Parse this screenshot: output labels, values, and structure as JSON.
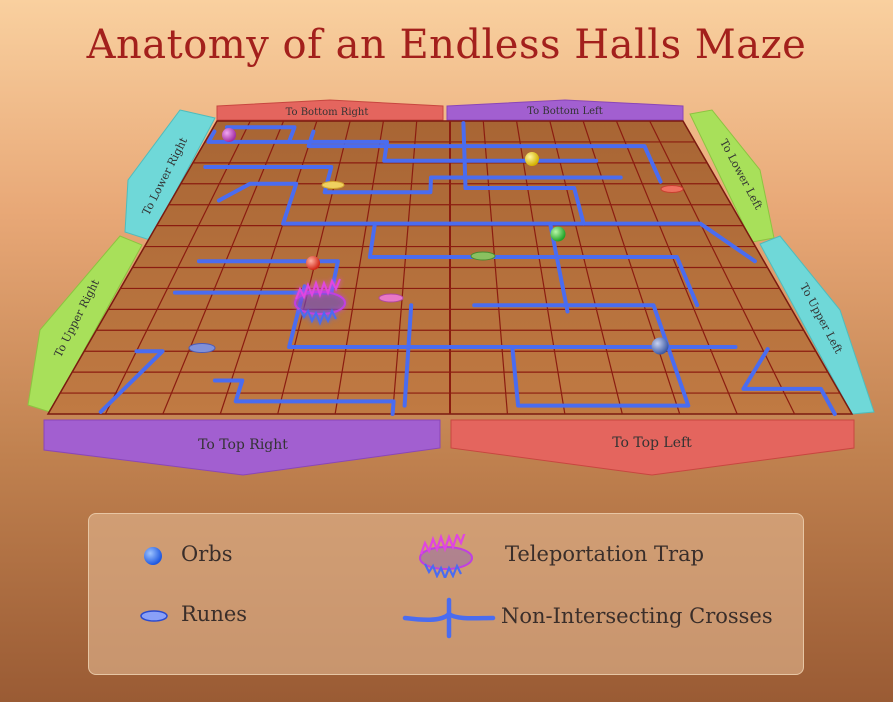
{
  "title": "Anatomy of an Endless Halls Maze",
  "edges": {
    "top_left": "To Bottom Right",
    "top_right": "To Bottom Left",
    "left_upper": "To Lower Right",
    "left_lower": "To Upper Right",
    "right_upper": "To Lower Left",
    "right_lower": "To Upper Left",
    "bottom_left": "To Top Right",
    "bottom_right": "To Top Left"
  },
  "legend": {
    "orbs": "Orbs",
    "runes": "Runes",
    "trap": "Teleportation Trap",
    "crosses": "Non-Intersecting Crosses"
  },
  "colors": {
    "path": "#4a6cf0",
    "grid_line": "#8b1c10",
    "board": "#b8733e",
    "edge_red": "#e4655e",
    "edge_purple": "#a25fd0",
    "edge_green": "#a8e05a",
    "edge_cyan": "#6fd8d8",
    "trap": "#d63ad6"
  }
}
